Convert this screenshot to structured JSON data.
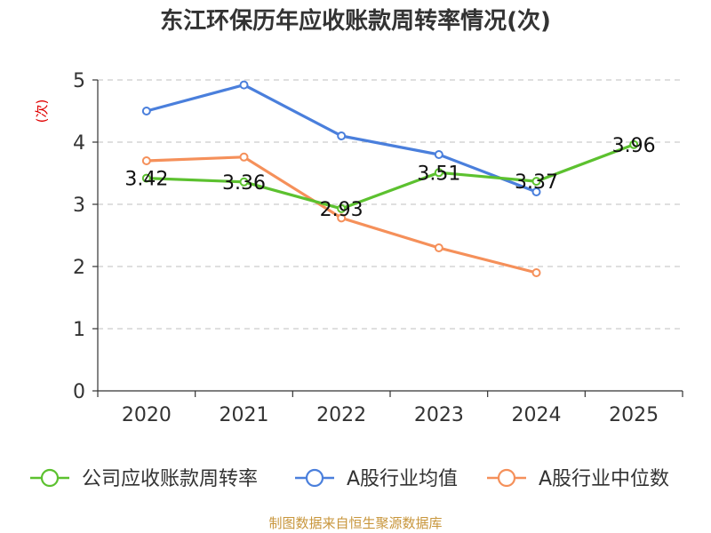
{
  "chart_data": {
    "type": "line",
    "title": "东江环保历年应收账款周转率情况(次)",
    "ylabel": "(次)",
    "xlabel": "",
    "categories": [
      "2020",
      "2021",
      "2022",
      "2023",
      "2024",
      "2025"
    ],
    "ylim": [
      0,
      5
    ],
    "yticks": [
      "0",
      "1",
      "2",
      "3",
      "4",
      "5"
    ],
    "grid": true,
    "legend_position": "bottom",
    "series": [
      {
        "name": "公司应收账款周转率",
        "color": "#5cc12f",
        "values": [
          3.42,
          3.36,
          2.93,
          3.51,
          3.37,
          3.96
        ],
        "labels": [
          "3.42",
          "3.36",
          "2.93",
          "3.51",
          "3.37",
          "3.96"
        ]
      },
      {
        "name": "A股行业均值",
        "color": "#4a7fdc",
        "values": [
          4.5,
          4.92,
          4.1,
          3.8,
          3.2,
          null
        ]
      },
      {
        "name": "A股行业中位数",
        "color": "#f5905a",
        "values": [
          3.7,
          3.76,
          2.78,
          2.3,
          1.9,
          null
        ]
      }
    ]
  },
  "source": "制图数据来自恒生聚源数据库"
}
